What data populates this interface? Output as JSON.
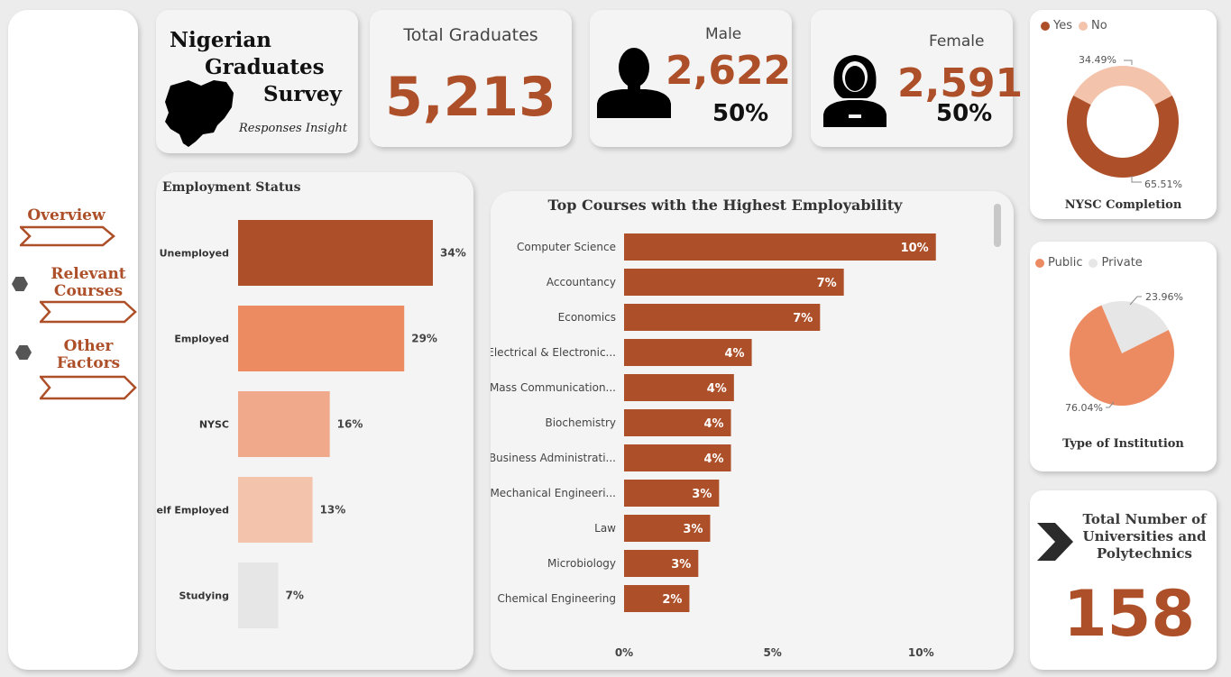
{
  "nav": {
    "overview": "Overview",
    "relevant_courses": [
      "Relevant",
      "Courses"
    ],
    "other_factors": [
      "Other",
      "Factors"
    ]
  },
  "title": {
    "line1": "Nigerian",
    "line2": "Graduates",
    "line3": "Survey",
    "subtitle": "Responses Insight"
  },
  "kpis": {
    "total_label": "Total Graduates",
    "total_value": "5,213",
    "male_label": "Male",
    "male_value": "2,622",
    "male_pct": "50%",
    "female_label": "Female",
    "female_value": "2,591",
    "female_pct": "50%"
  },
  "institutions": {
    "title_lines": [
      "Total Number of",
      "Universities and",
      "Polytechnics"
    ],
    "value": "158"
  },
  "colors": {
    "accent": "#ad4f28",
    "medium": "#ec8a62",
    "light": "#f0a98a",
    "lighter": "#f4c3ac",
    "grey": "#e6e6e6"
  },
  "chart_data": [
    {
      "type": "bar",
      "orientation": "horizontal",
      "title": "Employment Status",
      "categories": [
        "Unemployed",
        "Employed",
        "NYSC",
        "Self Employed",
        "Studying"
      ],
      "values": [
        34,
        29,
        16,
        13,
        7
      ],
      "labels": [
        "34%",
        "29%",
        "16%",
        "13%",
        "7%"
      ],
      "xlim": [
        0,
        34
      ]
    },
    {
      "type": "bar",
      "orientation": "horizontal",
      "title": "Top Courses with the Highest Employability",
      "categories": [
        "Computer Science",
        "Accountancy",
        "Economics",
        "Electrical & Electronic...",
        "Mass Communication...",
        "Biochemistry",
        "Business Administrati...",
        "Mechanical Engineeri...",
        "Law",
        "Microbiology",
        "Chemical Engineering"
      ],
      "values": [
        10.5,
        7.4,
        6.6,
        4.3,
        3.7,
        3.6,
        3.6,
        3.2,
        2.9,
        2.5,
        2.2
      ],
      "labels": [
        "10%",
        "7%",
        "7%",
        "4%",
        "4%",
        "4%",
        "4%",
        "3%",
        "3%",
        "3%",
        "2%"
      ],
      "xlim": [
        0,
        12.3
      ],
      "xticks": [
        0,
        5,
        10
      ],
      "xtick_labels": [
        "0%",
        "5%",
        "10%"
      ]
    },
    {
      "type": "pie",
      "style": "donut",
      "title": "NYSC Completion",
      "legend": [
        "Yes",
        "No"
      ],
      "values": [
        65.51,
        34.49
      ],
      "labels": [
        "65.51%",
        "34.49%"
      ]
    },
    {
      "type": "pie",
      "title": "Type of Institution",
      "legend": [
        "Public",
        "Private"
      ],
      "values": [
        76.04,
        23.96
      ],
      "labels": [
        "76.04%",
        "23.96%"
      ]
    }
  ]
}
